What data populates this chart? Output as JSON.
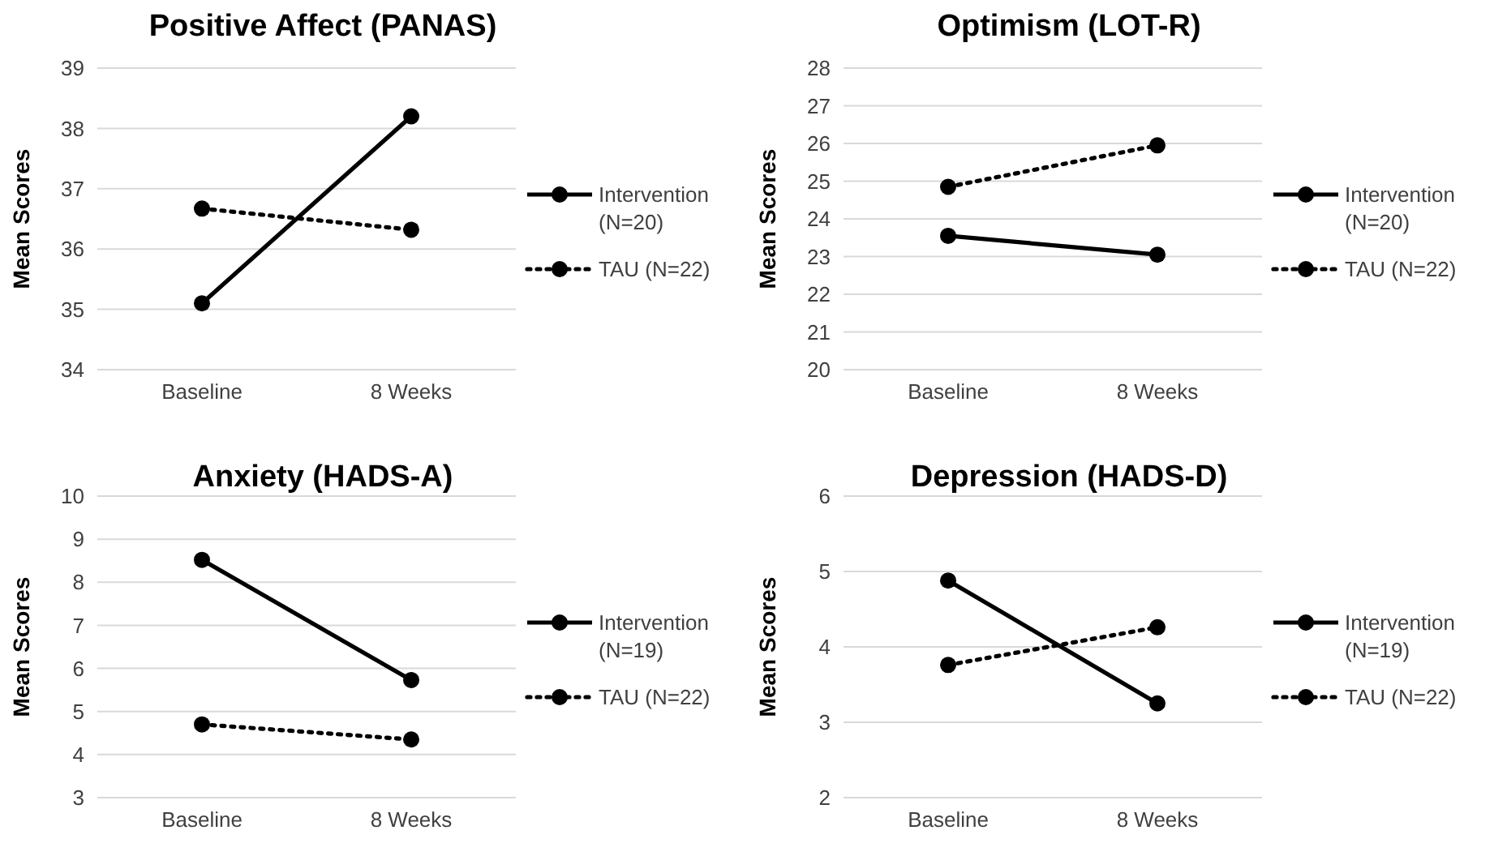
{
  "chart_data": [
    {
      "type": "line",
      "title": "Positive Affect (PANAS)",
      "ylabel": "Mean Scores",
      "categories": [
        "Baseline",
        "8 Weeks"
      ],
      "ylim": [
        34,
        39
      ],
      "yticks": [
        34,
        35,
        36,
        37,
        38,
        39
      ],
      "grid": "y",
      "legend": "right",
      "marker": "circle",
      "series": [
        {
          "name": "Intervention (N=20)",
          "color": "#000000",
          "line_style": "solid",
          "values": [
            35.1,
            38.2
          ]
        },
        {
          "name": "TAU (N=22)",
          "color": "#000000",
          "line_style": "dotted",
          "values": [
            36.67,
            36.32
          ]
        }
      ]
    },
    {
      "type": "line",
      "title": "Optimism (LOT-R)",
      "ylabel": "Mean Scores",
      "categories": [
        "Baseline",
        "8 Weeks"
      ],
      "ylim": [
        20,
        28
      ],
      "yticks": [
        20,
        21,
        22,
        23,
        24,
        25,
        26,
        27,
        28
      ],
      "grid": "y",
      "legend": "right",
      "marker": "circle",
      "series": [
        {
          "name": "Intervention (N=20)",
          "color": "#000000",
          "line_style": "solid",
          "values": [
            23.55,
            23.05
          ]
        },
        {
          "name": "TAU (N=22)",
          "color": "#000000",
          "line_style": "dotted",
          "values": [
            24.85,
            25.95
          ]
        }
      ]
    },
    {
      "type": "line",
      "title": "Anxiety (HADS-A)",
      "ylabel": "Mean Scores",
      "categories": [
        "Baseline",
        "8 Weeks"
      ],
      "ylim": [
        3,
        10
      ],
      "yticks": [
        3,
        4,
        5,
        6,
        7,
        8,
        9,
        10
      ],
      "grid": "y",
      "legend": "right",
      "marker": "circle",
      "series": [
        {
          "name": "Intervention (N=19)",
          "color": "#000000",
          "line_style": "solid",
          "values": [
            8.52,
            5.73
          ]
        },
        {
          "name": "TAU (N=22)",
          "color": "#000000",
          "line_style": "dotted",
          "values": [
            4.7,
            4.35
          ]
        }
      ]
    },
    {
      "type": "line",
      "title": "Depression (HADS-D)",
      "ylabel": "Mean Scores",
      "categories": [
        "Baseline",
        "8 Weeks"
      ],
      "ylim": [
        2,
        6
      ],
      "yticks": [
        2,
        3,
        4,
        5,
        6
      ],
      "grid": "y",
      "legend": "right",
      "marker": "circle",
      "series": [
        {
          "name": "Intervention (N=19)",
          "color": "#000000",
          "line_style": "solid",
          "values": [
            4.88,
            3.25
          ]
        },
        {
          "name": "TAU (N=22)",
          "color": "#000000",
          "line_style": "dotted",
          "values": [
            3.76,
            4.26
          ]
        }
      ]
    }
  ]
}
